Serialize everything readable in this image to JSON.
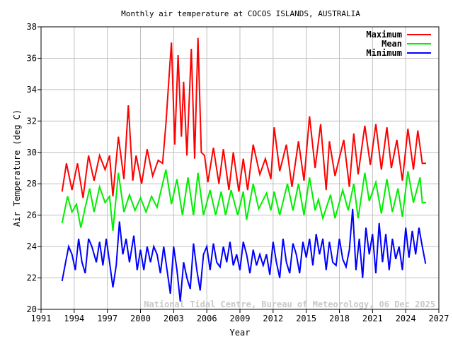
{
  "chart_data": {
    "type": "line",
    "title": "Monthly air temperature at COCOS ISLANDS, AUSTRALIA",
    "xlabel": "Year",
    "ylabel": "Air Temperature (deg C)",
    "xlim": [
      1991,
      2027
    ],
    "ylim": [
      20,
      38
    ],
    "xticks": [
      "1991",
      "1994",
      "1997",
      "2000",
      "2003",
      "2006",
      "2009",
      "2012",
      "2015",
      "2018",
      "2021",
      "2024",
      "2027"
    ],
    "yticks": [
      "20",
      "22",
      "24",
      "26",
      "28",
      "30",
      "32",
      "34",
      "36",
      "38"
    ],
    "grid": true,
    "legend_position": "top-right",
    "watermark": "National Tidal Centre, Bureau of Meteorology, 06 Dec 2025",
    "series": [
      {
        "name": "Maximum",
        "color": "#ff0000",
        "x": [
          1992.9,
          1993.3,
          1993.8,
          1994.3,
          1994.8,
          1995.3,
          1995.8,
          1996.3,
          1996.8,
          1997.2,
          1997.5,
          1998.0,
          1998.5,
          1998.9,
          1999.3,
          1999.6,
          2000.1,
          2000.6,
          2001.1,
          2001.6,
          2002.0,
          2002.3,
          2002.6,
          2002.8,
          2003.1,
          2003.4,
          2003.7,
          2003.9,
          2004.2,
          2004.6,
          2004.9,
          2005.2,
          2005.5,
          2005.8,
          2006.1,
          2006.6,
          2007.1,
          2007.5,
          2008.0,
          2008.4,
          2008.9,
          2009.3,
          2009.7,
          2010.2,
          2010.8,
          2011.3,
          2011.8,
          2012.1,
          2012.6,
          2013.2,
          2013.7,
          2014.3,
          2014.8,
          2015.3,
          2015.8,
          2016.3,
          2016.8,
          2017.1,
          2017.6,
          2018.4,
          2018.9,
          2019.3,
          2019.7,
          2020.3,
          2020.8,
          2021.3,
          2021.8,
          2022.3,
          2022.7,
          2023.2,
          2023.7,
          2024.2,
          2024.7,
          2025.1,
          2025.5,
          2025.85
        ],
        "y": [
          27.5,
          29.3,
          27.6,
          29.3,
          27.1,
          29.8,
          28.2,
          29.8,
          28.9,
          29.8,
          27.2,
          31.0,
          28.3,
          33.0,
          28.2,
          29.8,
          28.0,
          30.2,
          28.5,
          29.5,
          29.3,
          31.8,
          35.0,
          37.0,
          30.5,
          36.2,
          31.0,
          34.5,
          29.8,
          36.6,
          29.6,
          37.3,
          30.0,
          29.8,
          28.1,
          30.3,
          28.0,
          30.2,
          27.6,
          30.0,
          27.5,
          29.6,
          27.6,
          30.5,
          28.6,
          29.6,
          28.3,
          31.6,
          28.8,
          30.5,
          27.8,
          30.7,
          28.2,
          32.3,
          29.0,
          31.8,
          27.6,
          30.7,
          28.5,
          30.8,
          27.8,
          31.2,
          28.6,
          31.7,
          29.2,
          31.8,
          28.9,
          31.6,
          29.0,
          30.8,
          28.2,
          31.5,
          28.9,
          31.4,
          29.3,
          29.3
        ]
      },
      {
        "name": "Mean",
        "color": "#00ee00",
        "x": [
          1992.9,
          1993.4,
          1993.8,
          1994.2,
          1994.6,
          1995.0,
          1995.4,
          1995.8,
          1996.3,
          1996.8,
          1997.2,
          1997.5,
          1998.0,
          1998.5,
          1999.0,
          1999.5,
          2000.0,
          2000.5,
          2001.0,
          2001.5,
          2002.3,
          2002.8,
          2003.3,
          2003.8,
          2004.3,
          2004.8,
          2005.2,
          2005.7,
          2006.3,
          2006.8,
          2007.3,
          2007.7,
          2008.2,
          2008.8,
          2009.3,
          2009.6,
          2010.2,
          2010.7,
          2011.4,
          2011.8,
          2012.1,
          2012.6,
          2013.3,
          2013.8,
          2014.3,
          2014.8,
          2015.3,
          2015.8,
          2016.1,
          2016.5,
          2017.2,
          2017.6,
          2018.3,
          2018.8,
          2019.3,
          2019.7,
          2020.3,
          2020.7,
          2021.3,
          2021.8,
          2022.3,
          2022.8,
          2023.3,
          2023.7,
          2024.2,
          2024.7,
          2025.3,
          2025.5,
          2025.85
        ],
        "y": [
          25.5,
          27.2,
          26.2,
          26.7,
          25.2,
          26.5,
          27.7,
          26.2,
          27.8,
          26.8,
          27.2,
          25.0,
          28.7,
          26.2,
          27.3,
          26.3,
          27.1,
          26.2,
          27.2,
          26.5,
          28.9,
          26.7,
          28.3,
          26.0,
          28.4,
          26.0,
          28.7,
          26.0,
          27.6,
          26.0,
          27.5,
          26.0,
          27.6,
          26.0,
          27.5,
          25.7,
          28.0,
          26.4,
          27.4,
          26.3,
          27.5,
          26.0,
          28.0,
          26.3,
          28.0,
          26.0,
          28.4,
          26.3,
          27.0,
          25.8,
          27.3,
          25.8,
          27.6,
          26.3,
          28.0,
          25.8,
          28.7,
          26.9,
          28.1,
          26.1,
          28.3,
          26.2,
          27.7,
          25.9,
          28.8,
          26.8,
          28.4,
          26.8,
          26.8
        ]
      },
      {
        "name": "Minimum",
        "color": "#0000ff",
        "x": [
          1992.9,
          1993.2,
          1993.5,
          1993.8,
          1994.1,
          1994.4,
          1994.7,
          1995.0,
          1995.3,
          1995.6,
          1996.0,
          1996.3,
          1996.6,
          1996.9,
          1997.2,
          1997.5,
          1997.8,
          1998.1,
          1998.4,
          1998.7,
          1999.0,
          1999.4,
          1999.7,
          2000.0,
          2000.3,
          2000.6,
          2000.9,
          2001.2,
          2001.5,
          2001.8,
          2002.1,
          2002.4,
          2002.7,
          2003.0,
          2003.3,
          2003.6,
          2003.9,
          2004.2,
          2004.5,
          2004.8,
          2005.1,
          2005.4,
          2005.7,
          2006.0,
          2006.3,
          2006.6,
          2006.9,
          2007.2,
          2007.5,
          2007.8,
          2008.1,
          2008.4,
          2008.7,
          2009.0,
          2009.3,
          2009.6,
          2009.9,
          2010.2,
          2010.5,
          2010.8,
          2011.1,
          2011.4,
          2011.7,
          2012.0,
          2012.3,
          2012.6,
          2012.9,
          2013.2,
          2013.5,
          2013.8,
          2014.1,
          2014.4,
          2014.7,
          2015.0,
          2015.3,
          2015.6,
          2015.9,
          2016.2,
          2016.5,
          2016.8,
          2017.1,
          2017.4,
          2017.7,
          2018.0,
          2018.3,
          2018.6,
          2018.9,
          2019.2,
          2019.5,
          2019.8,
          2020.1,
          2020.4,
          2020.7,
          2021.0,
          2021.3,
          2021.6,
          2021.9,
          2022.2,
          2022.5,
          2022.8,
          2023.1,
          2023.4,
          2023.7,
          2024.0,
          2024.3,
          2024.6,
          2024.9,
          2025.2,
          2025.5,
          2025.8
        ],
        "y": [
          21.8,
          22.9,
          24.0,
          23.5,
          22.5,
          24.5,
          23.0,
          22.3,
          24.5,
          24.0,
          23.0,
          24.3,
          22.8,
          24.5,
          23.0,
          21.4,
          22.8,
          25.6,
          23.5,
          24.5,
          23.0,
          24.7,
          22.5,
          23.8,
          22.5,
          24.0,
          23.0,
          24.0,
          23.5,
          22.3,
          24.0,
          22.5,
          21.0,
          24.0,
          22.5,
          20.5,
          23.0,
          22.0,
          21.3,
          24.2,
          22.5,
          21.2,
          23.5,
          24.0,
          22.5,
          24.2,
          23.0,
          22.7,
          24.0,
          23.0,
          24.3,
          22.8,
          23.5,
          22.5,
          24.3,
          23.5,
          22.3,
          23.8,
          22.8,
          23.5,
          22.8,
          23.5,
          22.2,
          24.3,
          23.0,
          22.0,
          24.5,
          23.0,
          22.3,
          24.2,
          23.5,
          22.3,
          24.3,
          23.3,
          24.5,
          22.8,
          24.8,
          23.5,
          24.5,
          22.5,
          24.3,
          23.0,
          22.8,
          24.5,
          23.2,
          22.7,
          23.8,
          26.4,
          22.5,
          24.5,
          22.0,
          25.2,
          23.5,
          24.8,
          22.3,
          25.5,
          23.0,
          24.8,
          22.5,
          24.5,
          23.2,
          24.0,
          22.5,
          25.2,
          23.3,
          25.0,
          23.5,
          25.2,
          24.0,
          22.9
        ]
      }
    ]
  }
}
